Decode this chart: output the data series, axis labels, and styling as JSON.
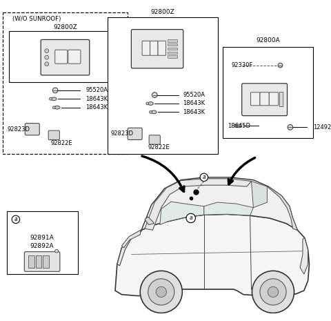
{
  "bg_color": "#ffffff",
  "box1_label": "(W/O SUNROOF)",
  "box1_partnum": "92800Z",
  "box2_partnum": "92800Z",
  "box3_partnum": "92800A",
  "parts": {
    "box1": [
      "95520A",
      "18643K",
      "18643K",
      "92823D",
      "92822E"
    ],
    "box2": [
      "95520A",
      "18643K",
      "18643K",
      "92823D",
      "92822E"
    ],
    "box3_top": "92330F",
    "box3_bot1": "18645D",
    "box3_bot2": "12492",
    "box4": [
      "92891A",
      "92892A"
    ]
  }
}
